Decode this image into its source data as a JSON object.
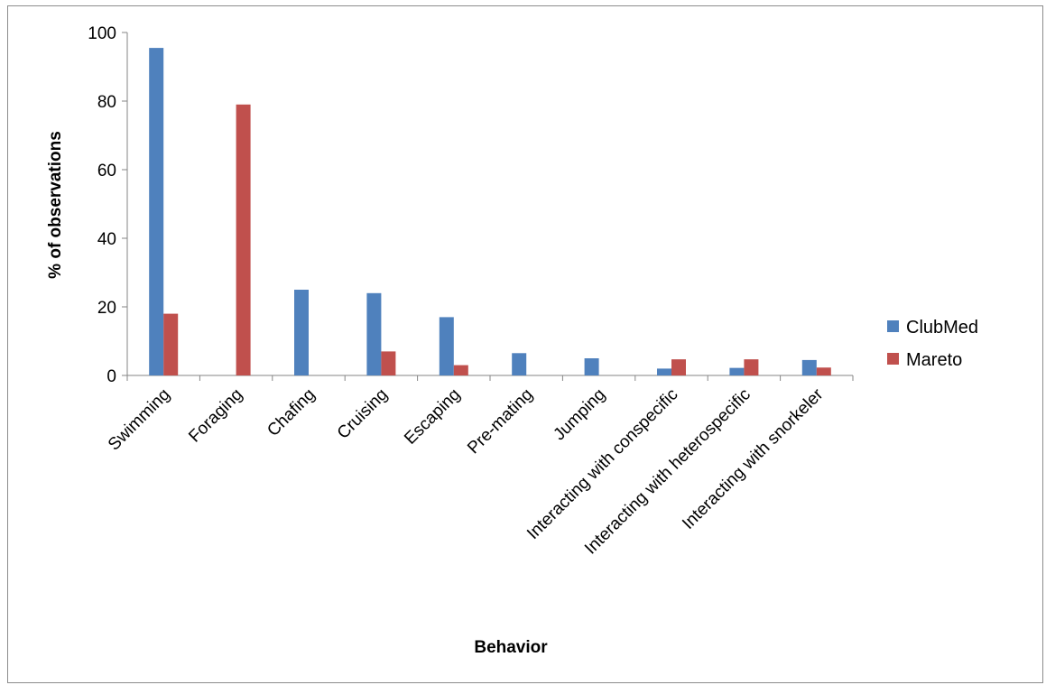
{
  "chart_data": {
    "type": "bar",
    "title": "",
    "xlabel": "Behavior",
    "ylabel": "% of observations",
    "ylim": [
      0,
      100
    ],
    "yticks": [
      0,
      20,
      40,
      60,
      80,
      100
    ],
    "grid": false,
    "legend_position": "right",
    "categories": [
      "Swimming",
      "Foraging",
      "Chafing",
      "Cruising",
      "Escaping",
      "Pre-mating",
      "Jumping",
      "Interacting with conspecific",
      "Interacting with heterospecific",
      "Interacting with snorkeler"
    ],
    "series": [
      {
        "name": "ClubMed",
        "color": "#4F81BD",
        "values": [
          95.5,
          0,
          25,
          24,
          17,
          6.5,
          5,
          2,
          2.2,
          4.5
        ]
      },
      {
        "name": "Mareto",
        "color": "#C0504D",
        "values": [
          18,
          79,
          0,
          7,
          3,
          0,
          0,
          4.7,
          4.7,
          2.3
        ]
      }
    ]
  }
}
